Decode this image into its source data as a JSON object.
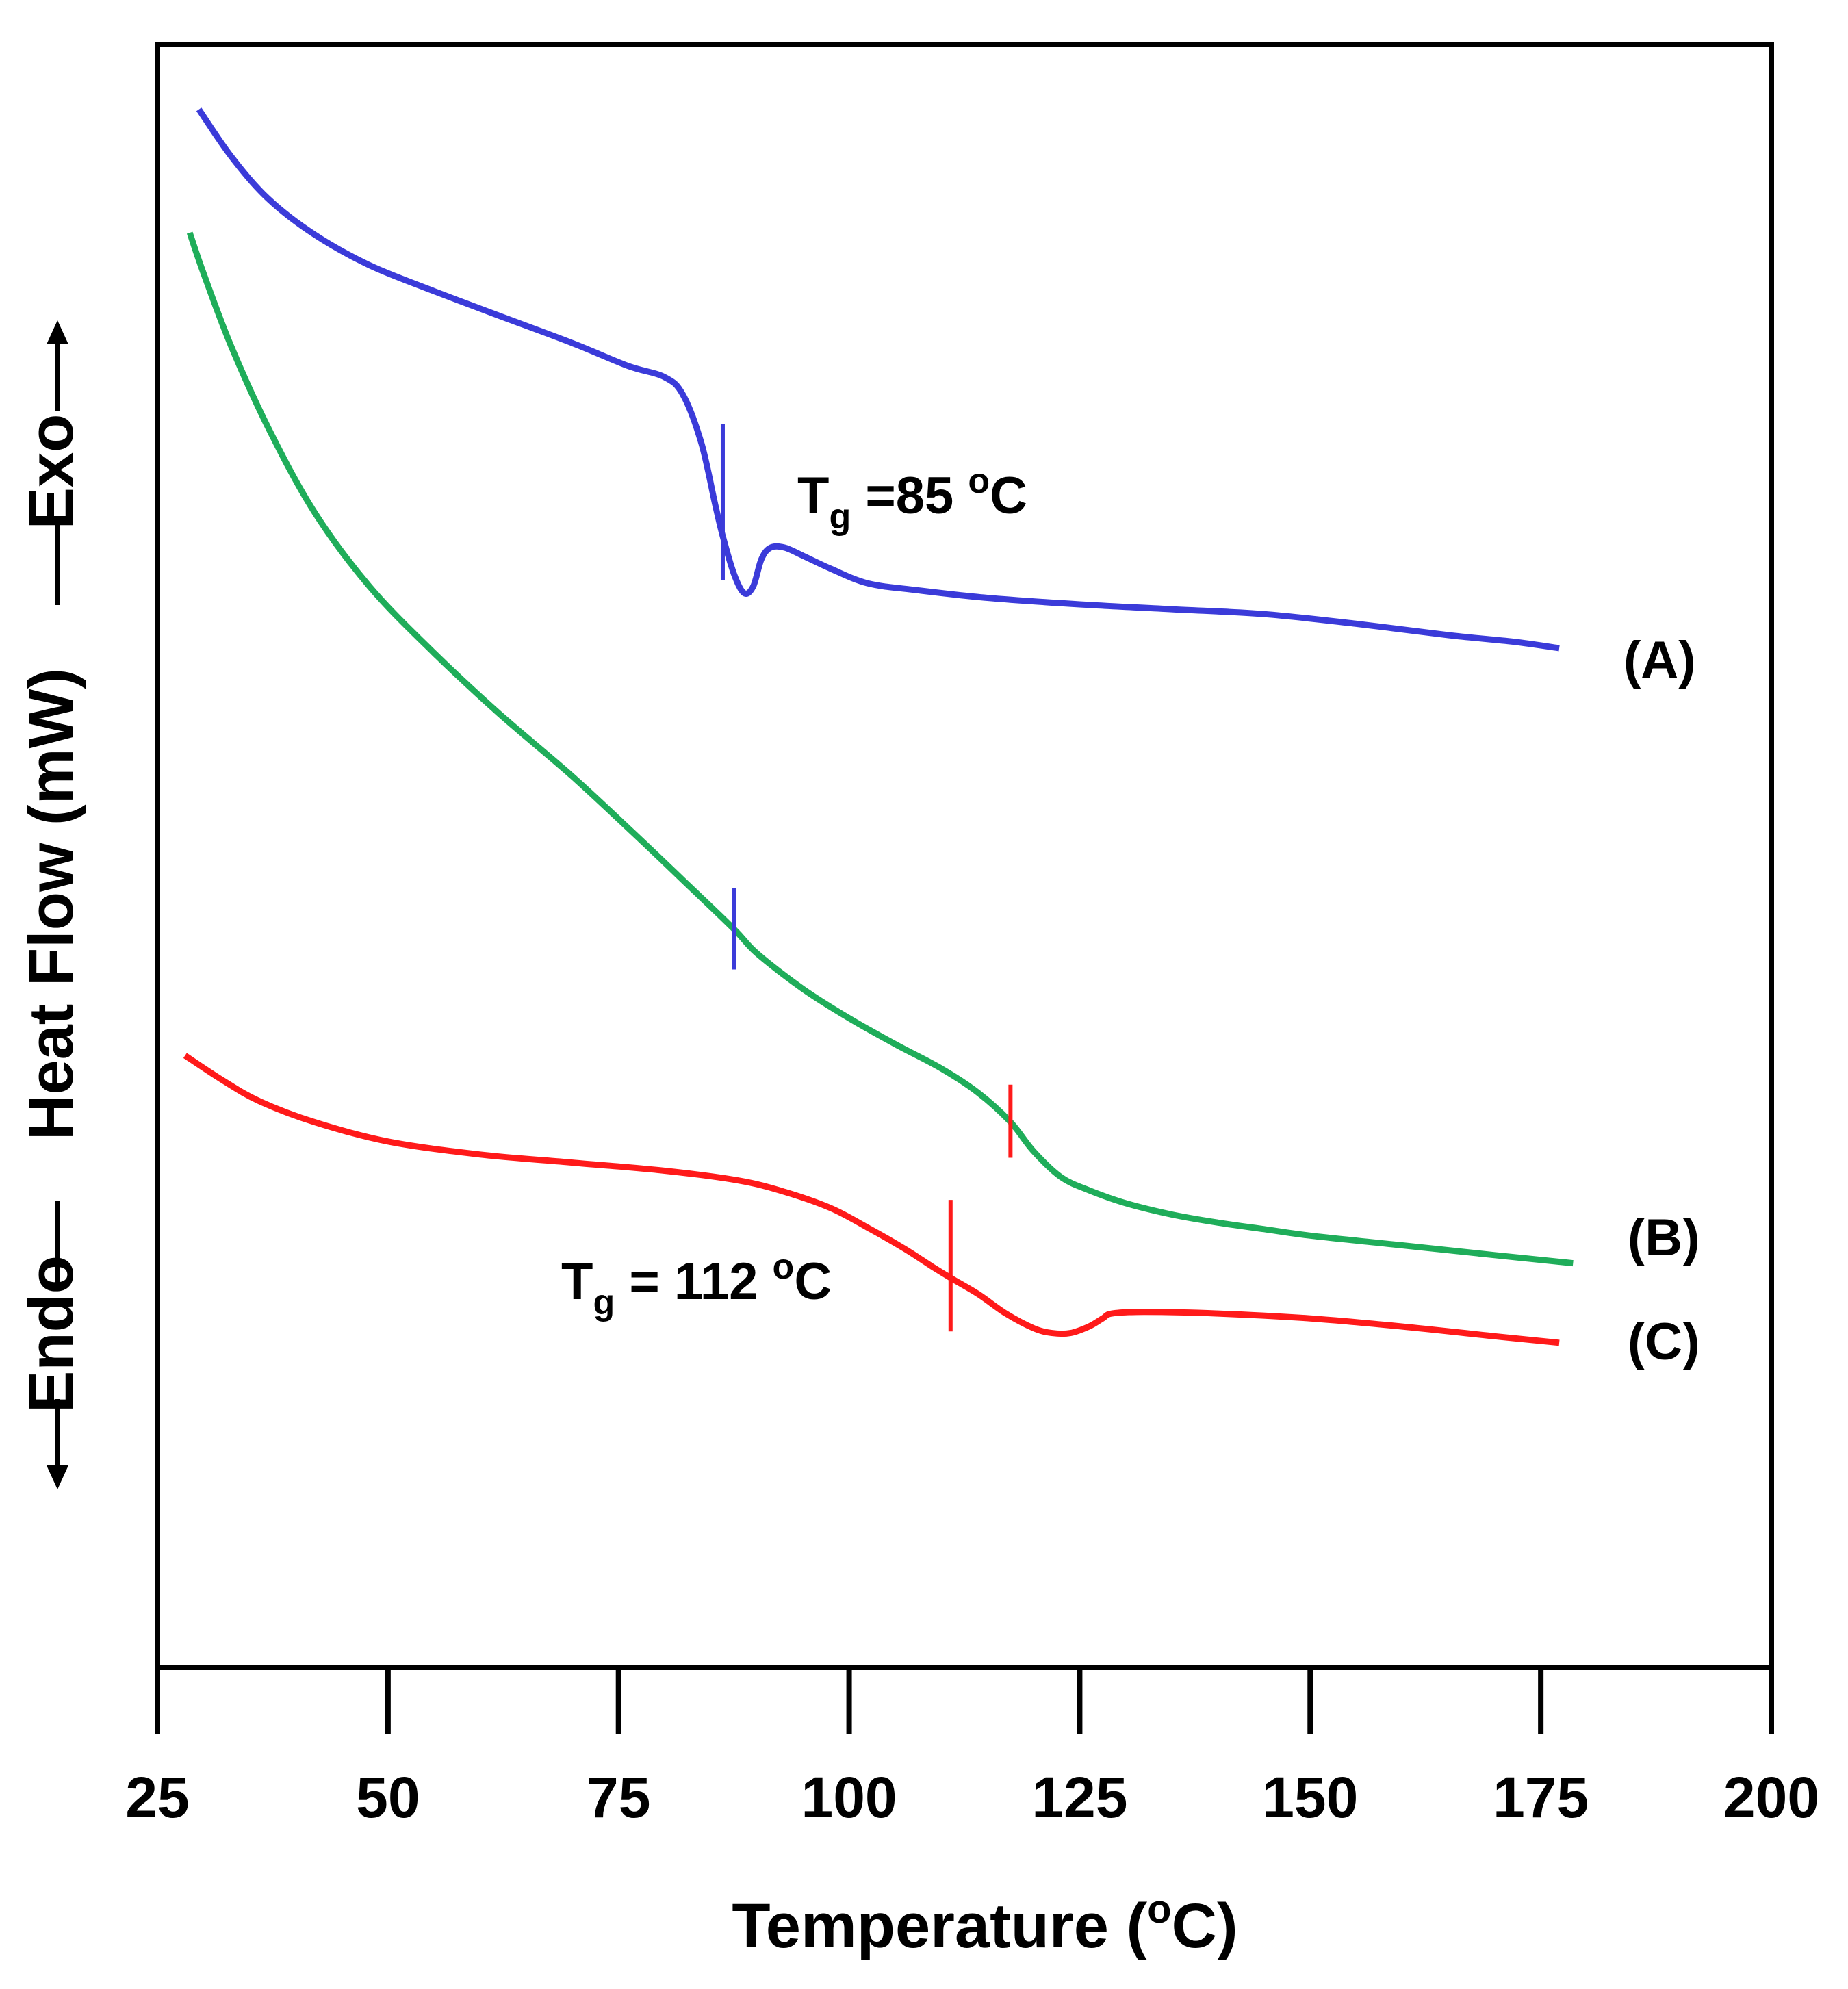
{
  "chart_data": {
    "type": "line",
    "title": "",
    "xlabel": "Temperature (°C)",
    "xlabel_parts": {
      "main": "Temperature (",
      "sup": "o",
      "tail": "C)"
    },
    "ylabel": "Endo — Heat Flow (mW) — Exo",
    "ylabel_parts": {
      "endo": "Endo",
      "main": "Heat Flow (mW)",
      "exo": "Exo"
    },
    "xlim": [
      25,
      200
    ],
    "xticks": [
      25,
      50,
      75,
      100,
      125,
      150,
      175,
      200
    ],
    "ylim": [
      0,
      100
    ],
    "grid": false,
    "series": [
      {
        "name": "(A)",
        "color": "#3b3bd9",
        "x": [
          29.5,
          33,
          37,
          42,
          48,
          55,
          62,
          70,
          76,
          80,
          82,
          84,
          85.5,
          86.3,
          87.5,
          88.6,
          89.6,
          90.5,
          91.5,
          93,
          95,
          98,
          102,
          107,
          115,
          125,
          135,
          145,
          155,
          165,
          172,
          177
        ],
        "y": [
          96.0,
          93.1,
          90.5,
          88.3,
          86.4,
          84.8,
          83.3,
          81.6,
          80.2,
          79.5,
          78.4,
          75.4,
          71.6,
          69.7,
          67.4,
          66.2,
          66.6,
          68.3,
          69.0,
          69.0,
          68.5,
          67.7,
          66.8,
          66.4,
          65.9,
          65.5,
          65.2,
          64.9,
          64.3,
          63.6,
          63.2,
          62.8
        ]
      },
      {
        "name": "(B)",
        "color": "#1fad5a",
        "x": [
          28.5,
          30,
          33,
          37,
          42,
          48,
          55,
          62,
          70,
          77,
          82,
          87.5,
          90,
          95,
          100,
          105,
          110,
          114,
          117.5,
          120,
          123,
          126,
          130,
          135,
          140,
          145,
          150,
          160,
          170,
          178.5
        ],
        "y": [
          88.4,
          85.9,
          81.4,
          76.4,
          71.2,
          66.6,
          62.5,
          58.8,
          54.9,
          51.2,
          48.5,
          45.5,
          44.0,
          41.8,
          40.0,
          38.4,
          36.9,
          35.4,
          33.6,
          31.8,
          30.2,
          29.4,
          28.6,
          27.9,
          27.4,
          27.0,
          26.6,
          26.0,
          25.4,
          24.9
        ]
      },
      {
        "name": "(C)",
        "color": "#ff1a1a",
        "x": [
          28,
          32,
          36,
          42,
          50,
          60,
          70,
          80,
          88,
          93,
          98,
          102,
          106,
          109,
          111,
          114,
          117,
          120,
          122,
          124,
          126,
          127.5,
          128.5,
          132,
          140,
          150,
          160,
          170,
          177
        ],
        "y": [
          37.7,
          36.2,
          34.9,
          33.6,
          32.4,
          31.6,
          31.1,
          30.6,
          30.0,
          29.3,
          28.3,
          27.1,
          25.8,
          24.7,
          24.0,
          23.0,
          21.8,
          20.9,
          20.6,
          20.6,
          21.0,
          21.5,
          21.8,
          21.9,
          21.8,
          21.5,
          21.0,
          20.4,
          20.0
        ]
      }
    ],
    "tg_markers": [
      {
        "series": "(A)",
        "x": 86.3,
        "y_low": 67.0,
        "y_high": 76.6,
        "color": "#3b3bd9"
      },
      {
        "series": "(B)",
        "x": 87.5,
        "y_low": 43.0,
        "y_high": 48.0,
        "color": "#3b3bd9"
      },
      {
        "series": "(B)",
        "x": 117.5,
        "y_low": 31.4,
        "y_high": 35.9,
        "color": "#ff1a1a"
      },
      {
        "series": "(C)",
        "x": 111,
        "y_low": 20.7,
        "y_high": 28.8,
        "color": "#ff1a1a"
      }
    ],
    "annotations": [
      {
        "id": "tg-a",
        "text": "Tg =85 °C",
        "T": "T",
        "sub": "g",
        "value": " =85 ",
        "sup": "o",
        "unit": "C"
      },
      {
        "id": "tg-c",
        "text": "Tg = 112 °C",
        "T": "T",
        "sub": "g",
        "value": " = 112 ",
        "sup": "o",
        "unit": "C"
      }
    ],
    "series_labels": [
      "(A)",
      "(B)",
      "(C)"
    ]
  }
}
